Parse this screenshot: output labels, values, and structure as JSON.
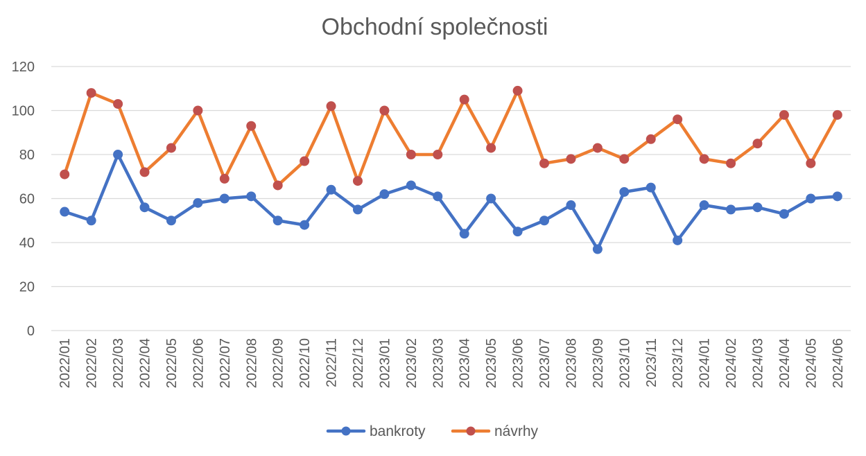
{
  "chart_data": {
    "type": "line",
    "title": "Obchodní společnosti",
    "xlabel": "",
    "ylabel": "",
    "ylim": [
      0,
      120
    ],
    "yticks": [
      0,
      20,
      40,
      60,
      80,
      100,
      120
    ],
    "grid": true,
    "legend_position": "bottom",
    "categories": [
      "2022/01",
      "2022/02",
      "2022/03",
      "2022/04",
      "2022/05",
      "2022/06",
      "2022/07",
      "2022/08",
      "2022/09",
      "2022/10",
      "2022/11",
      "2022/12",
      "2023/01",
      "2023/02",
      "2023/03",
      "2023/04",
      "2023/05",
      "2023/06",
      "2023/07",
      "2023/08",
      "2023/09",
      "2023/10",
      "2023/11",
      "2023/12",
      "2024/01",
      "2024/02",
      "2024/03",
      "2024/04",
      "2024/05",
      "2024/06"
    ],
    "series": [
      {
        "name": "bankroty",
        "color": "#4472c4",
        "marker_color": "#4472c4",
        "values": [
          54,
          50,
          80,
          56,
          50,
          58,
          60,
          61,
          50,
          48,
          64,
          55,
          62,
          66,
          61,
          44,
          60,
          45,
          50,
          57,
          37,
          63,
          65,
          41,
          57,
          55,
          56,
          53,
          60,
          61
        ]
      },
      {
        "name": "návrhy",
        "color": "#ed7d31",
        "marker_color": "#c0504d",
        "values": [
          71,
          108,
          103,
          72,
          83,
          100,
          69,
          93,
          66,
          77,
          102,
          68,
          100,
          80,
          80,
          105,
          83,
          109,
          76,
          78,
          83,
          78,
          87,
          96,
          78,
          76,
          85,
          98,
          76,
          98
        ]
      }
    ]
  }
}
